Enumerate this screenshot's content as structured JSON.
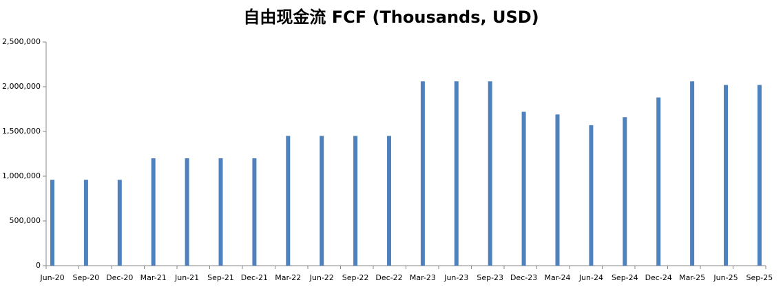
{
  "chart_data": {
    "type": "bar",
    "title": "自由现金流 FCF (Thousands, USD)",
    "categories": [
      "Jun-20",
      "Sep-20",
      "Dec-20",
      "Mar-21",
      "Jun-21",
      "Sep-21",
      "Dec-21",
      "Mar-22",
      "Jun-22",
      "Sep-22",
      "Dec-22",
      "Mar-23",
      "Jun-23",
      "Sep-23",
      "Dec-23",
      "Mar-24",
      "Jun-24",
      "Sep-24",
      "Dec-24",
      "Mar-25",
      "Jun-25",
      "Sep-25"
    ],
    "values": [
      960000,
      960000,
      960000,
      1200000,
      1200000,
      1200000,
      1200000,
      1450000,
      1450000,
      1450000,
      1450000,
      2060000,
      2060000,
      2060000,
      1720000,
      1690000,
      1570000,
      1660000,
      1880000,
      2060000,
      2020000,
      2020000
    ],
    "color": "#4f81bd",
    "ylim": [
      0,
      2500000
    ],
    "yticks": [
      0,
      {
        "value": 500000,
        "label": "500,000"
      },
      {
        "value": 1000000,
        "label": "1,000,000"
      },
      {
        "value": 1500000,
        "label": "1,500,000"
      },
      {
        "value": 2000000,
        "label": "2,000,000"
      },
      {
        "value": 2500000,
        "label": "2,500,000"
      }
    ],
    "grid": false
  }
}
